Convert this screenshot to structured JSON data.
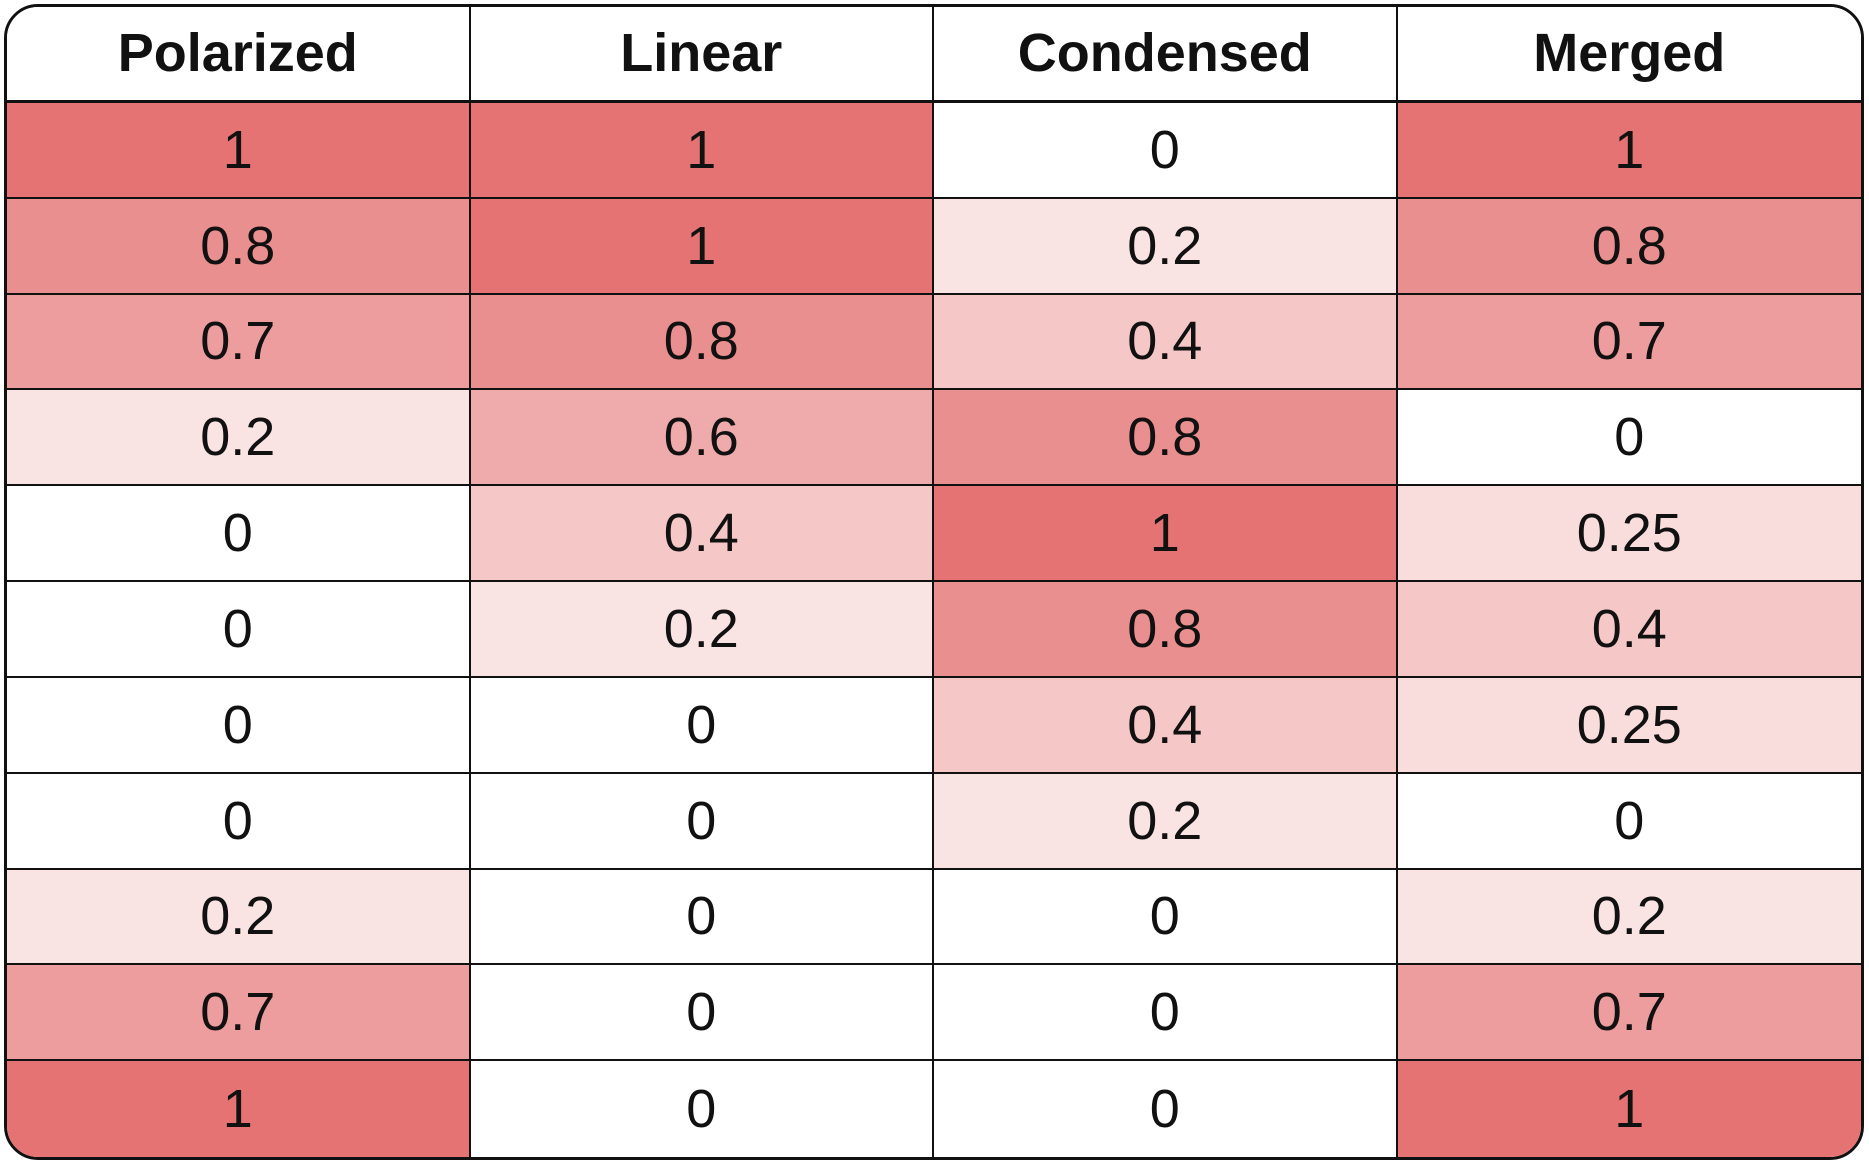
{
  "chart_data": {
    "type": "heatmap",
    "columns": [
      "Polarized",
      "Linear",
      "Condensed",
      "Merged"
    ],
    "rows": [
      [
        1,
        1,
        0,
        1
      ],
      [
        0.8,
        1,
        0.2,
        0.8
      ],
      [
        0.7,
        0.8,
        0.4,
        0.7
      ],
      [
        0.2,
        0.6,
        0.8,
        0
      ],
      [
        0,
        0.4,
        1,
        0.25
      ],
      [
        0,
        0.2,
        0.8,
        0.4
      ],
      [
        0,
        0,
        0.4,
        0.25
      ],
      [
        0,
        0,
        0.2,
        0
      ],
      [
        0.2,
        0,
        0,
        0.2
      ],
      [
        0.7,
        0,
        0,
        0.7
      ],
      [
        1,
        0,
        0,
        1
      ]
    ],
    "value_range": [
      0,
      1
    ],
    "color_scale": {
      "low": "#ffffff",
      "high": "#e57373"
    }
  }
}
